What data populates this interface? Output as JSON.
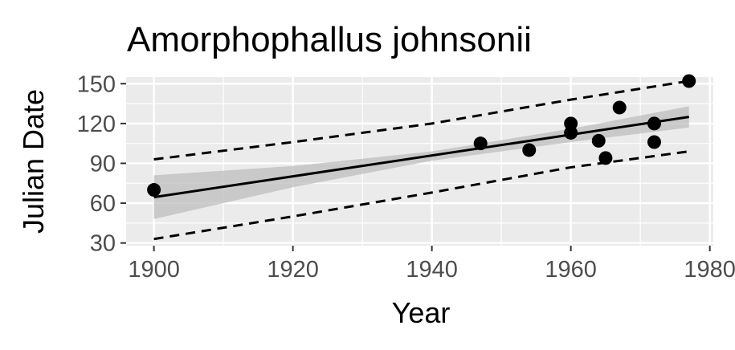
{
  "chart_data": {
    "type": "scatter",
    "title": "Amorphophallus johnsonii",
    "xlabel": "Year",
    "ylabel": "Julian Date",
    "xlim": [
      1896,
      1980.5
    ],
    "ylim": [
      28,
      155
    ],
    "xticks": [
      1900,
      1920,
      1940,
      1960,
      1980
    ],
    "yticks": [
      30,
      60,
      90,
      120,
      150
    ],
    "grid": true,
    "legend": "none",
    "points": [
      {
        "x": 1900,
        "y": 70
      },
      {
        "x": 1947,
        "y": 105
      },
      {
        "x": 1954,
        "y": 100
      },
      {
        "x": 1960,
        "y": 120
      },
      {
        "x": 1960,
        "y": 113
      },
      {
        "x": 1964,
        "y": 107
      },
      {
        "x": 1965,
        "y": 94
      },
      {
        "x": 1967,
        "y": 132
      },
      {
        "x": 1972,
        "y": 120
      },
      {
        "x": 1972,
        "y": 106
      },
      {
        "x": 1977,
        "y": 152
      }
    ],
    "fit_line": [
      {
        "x": 1900,
        "y": 64.5
      },
      {
        "x": 1977,
        "y": 125
      }
    ],
    "confidence_band": {
      "x": [
        1900,
        1920,
        1940,
        1960,
        1977
      ],
      "lower": [
        48,
        72,
        92,
        106,
        117
      ],
      "upper": [
        81,
        88,
        99,
        116,
        133
      ]
    },
    "prediction_interval": {
      "x": [
        1900,
        1920,
        1940,
        1960,
        1977
      ],
      "lower": [
        33,
        50,
        68,
        87,
        99
      ],
      "upper": [
        93,
        106,
        120,
        138,
        152
      ]
    },
    "colors": {
      "panel_background": "#ebebeb",
      "grid": "#ffffff",
      "points": "#000000",
      "fit_line": "#000000",
      "band": "#bdbdbd",
      "tick_label": "#4d4d4d"
    }
  }
}
